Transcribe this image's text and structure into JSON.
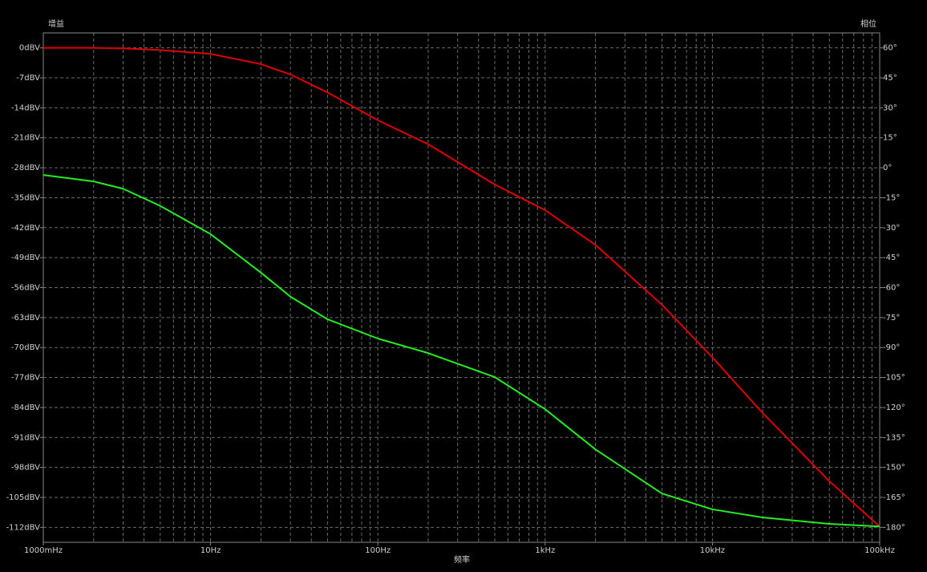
{
  "chart_data": {
    "type": "line",
    "y_label": "增益",
    "y2_label": "相位",
    "x_label": "频率",
    "log_x": true,
    "grid": true,
    "x": [
      1,
      2,
      3,
      5,
      10,
      20,
      30,
      50,
      100,
      200,
      500,
      1000,
      2000,
      5000,
      10000,
      20000,
      50000,
      100000
    ],
    "series": [
      {
        "color": "#e00000",
        "values": [
          0,
          0,
          -0.1,
          -0.5,
          -1.4,
          -3.8,
          -6.2,
          -10.4,
          -16.9,
          -22.5,
          -31.9,
          -37.9,
          -46,
          -60,
          -72.3,
          -85.3,
          -101.2,
          -111.8
        ]
      },
      {
        "color": "#22ee22",
        "values": [
          -29.7,
          -31.2,
          -32.9,
          -36.9,
          -43.5,
          -52.5,
          -58.1,
          -63.4,
          -67.9,
          -71.3,
          -76.9,
          -84.4,
          -93.8,
          -104.1,
          -107.8,
          -109.7,
          -111.2,
          -111.8
        ]
      }
    ],
    "xlim": [
      1,
      100000
    ],
    "xticks": [
      {
        "value": 1,
        "label": "1000mHz"
      },
      {
        "value": 10,
        "label": "10Hz"
      },
      {
        "value": 100,
        "label": "100Hz"
      },
      {
        "value": 1000,
        "label": "1kHz"
      },
      {
        "value": 10000,
        "label": "10kHz"
      },
      {
        "value": 100000,
        "label": "100kHz"
      }
    ],
    "ylim": [
      -115.5,
      3.5
    ],
    "yticks": [
      {
        "value": 0,
        "label": "0dBV"
      },
      {
        "value": -7,
        "label": "-7dBV"
      },
      {
        "value": -14,
        "label": "-14dBV"
      },
      {
        "value": -21,
        "label": "-21dBV"
      },
      {
        "value": -28,
        "label": "-28dBV"
      },
      {
        "value": -35,
        "label": "-35dBV"
      },
      {
        "value": -42,
        "label": "-42dBV"
      },
      {
        "value": -49,
        "label": "-49dBV"
      },
      {
        "value": -56,
        "label": "-56dBV"
      },
      {
        "value": -63,
        "label": "-63dBV"
      },
      {
        "value": -70,
        "label": "-70dBV"
      },
      {
        "value": -77,
        "label": "-77dBV"
      },
      {
        "value": -84,
        "label": "-84dBV"
      },
      {
        "value": -91,
        "label": "-91dBV"
      },
      {
        "value": -98,
        "label": "-98dBV"
      },
      {
        "value": -105,
        "label": "-105dBV"
      },
      {
        "value": -112,
        "label": "-112dBV"
      }
    ],
    "y2lim": [
      -187.5,
      67.5
    ],
    "y2ticks": [
      {
        "value": 60,
        "label": "60°"
      },
      {
        "value": 45,
        "label": "45°"
      },
      {
        "value": 30,
        "label": "30°"
      },
      {
        "value": 15,
        "label": "15°"
      },
      {
        "value": 0,
        "label": "0°"
      },
      {
        "value": -15,
        "label": "-15°"
      },
      {
        "value": -30,
        "label": "-30°"
      },
      {
        "value": -45,
        "label": "-45°"
      },
      {
        "value": -60,
        "label": "-60°"
      },
      {
        "value": -75,
        "label": "-75°"
      },
      {
        "value": -90,
        "label": "-90°"
      },
      {
        "value": -105,
        "label": "-105°"
      },
      {
        "value": -120,
        "label": "-120°"
      },
      {
        "value": -135,
        "label": "-135°"
      },
      {
        "value": -150,
        "label": "-150°"
      },
      {
        "value": -165,
        "label": "-165°"
      },
      {
        "value": -180,
        "label": "-180°"
      }
    ]
  }
}
